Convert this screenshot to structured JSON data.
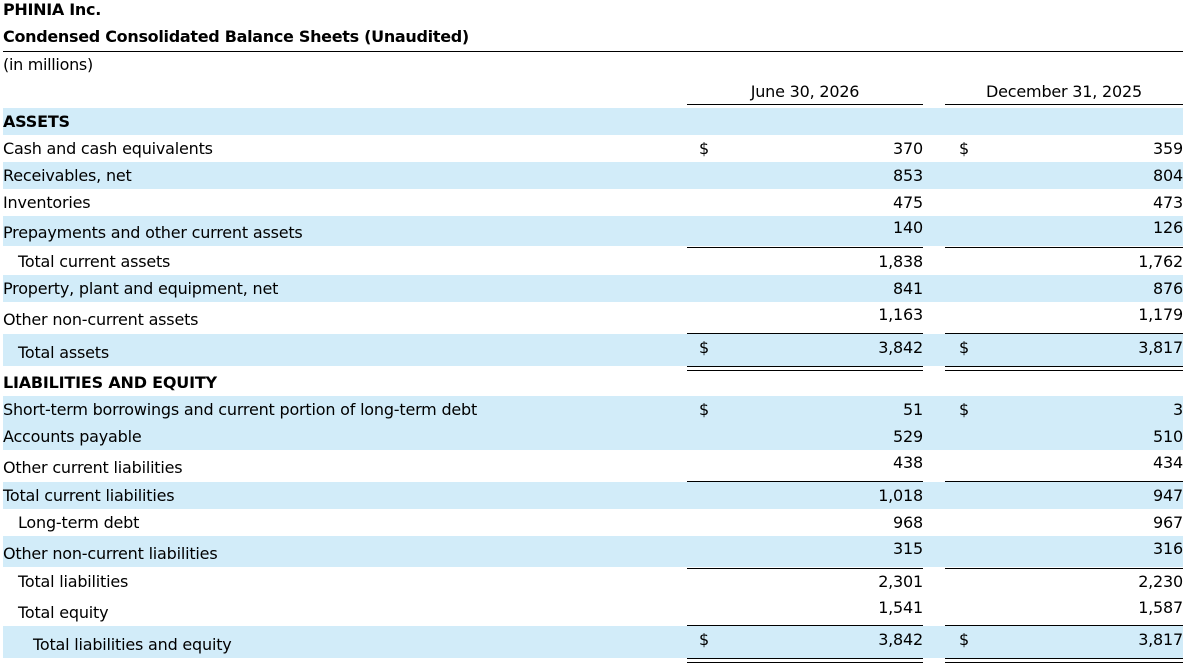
{
  "header": {
    "company": "PHINIA Inc.",
    "statement": "Condensed Consolidated Balance Sheets (Unaudited)",
    "unit": "(in millions)"
  },
  "columns": [
    "June 30, 2026",
    "December 31, 2025"
  ],
  "currency_symbol": "$",
  "rows": [
    {
      "label": "ASSETS",
      "v1": "",
      "v2": ""
    },
    {
      "label": "Cash and cash equivalents",
      "v1": "370",
      "v2": "359"
    },
    {
      "label": "Receivables, net",
      "v1": "853",
      "v2": "804"
    },
    {
      "label": "Inventories",
      "v1": "475",
      "v2": "473"
    },
    {
      "label": "Prepayments and other current assets",
      "v1": "140",
      "v2": "126"
    },
    {
      "label": "Total current assets",
      "v1": "1,838",
      "v2": "1,762"
    },
    {
      "label": "Property, plant and equipment, net",
      "v1": "841",
      "v2": "876"
    },
    {
      "label": "Other non-current assets",
      "v1": "1,163",
      "v2": "1,179"
    },
    {
      "label": "Total assets",
      "v1": "3,842",
      "v2": "3,817"
    },
    {
      "label": "LIABILITIES AND EQUITY",
      "v1": "",
      "v2": ""
    },
    {
      "label": "Short-term borrowings and current portion of long-term debt",
      "v1": "51",
      "v2": "3"
    },
    {
      "label": "Accounts payable",
      "v1": "529",
      "v2": "510"
    },
    {
      "label": "Other current liabilities",
      "v1": "438",
      "v2": "434"
    },
    {
      "label": "Total current liabilities",
      "v1": "1,018",
      "v2": "947"
    },
    {
      "label": "Long-term debt",
      "v1": "968",
      "v2": "967"
    },
    {
      "label": "Other non-current liabilities",
      "v1": "315",
      "v2": "316"
    },
    {
      "label": "Total liabilities",
      "v1": "2,301",
      "v2": "2,230"
    },
    {
      "label": "Total equity",
      "v1": "1,541",
      "v2": "1,587"
    },
    {
      "label": "Total liabilities and equity",
      "v1": "3,842",
      "v2": "3,817"
    }
  ]
}
